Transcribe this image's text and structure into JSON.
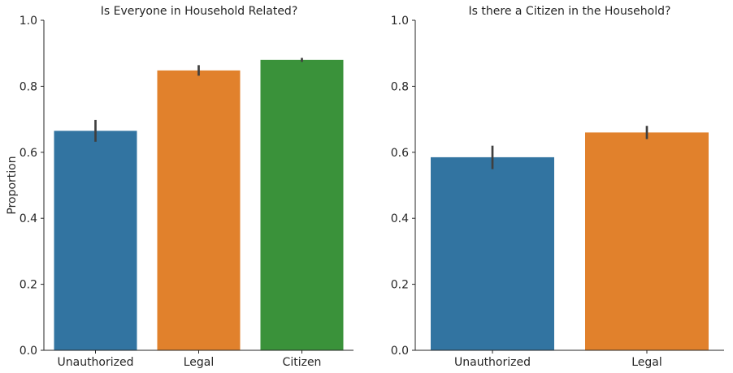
{
  "chart_data": [
    {
      "type": "bar",
      "title": "Is Everyone in Household Related?",
      "ylabel": "Proportion",
      "xlabel": "",
      "ylim": [
        0,
        1.0
      ],
      "yticks": [
        "0.0",
        "0.2",
        "0.4",
        "0.6",
        "0.8",
        "1.0"
      ],
      "categories": [
        "Unauthorized",
        "Legal",
        "Citizen"
      ],
      "values": [
        0.665,
        0.848,
        0.88
      ],
      "error_low": [
        0.632,
        0.832,
        0.874
      ],
      "error_high": [
        0.698,
        0.864,
        0.886
      ],
      "colors": [
        "#3274a1",
        "#e1812c",
        "#3a923a"
      ],
      "grid": false
    },
    {
      "type": "bar",
      "title": "Is there a Citizen in the Household?",
      "ylabel": "",
      "xlabel": "",
      "ylim": [
        0,
        1.0
      ],
      "yticks": [
        "0.0",
        "0.2",
        "0.4",
        "0.6",
        "0.8",
        "1.0"
      ],
      "categories": [
        "Unauthorized",
        "Legal"
      ],
      "values": [
        0.585,
        0.66
      ],
      "error_low": [
        0.549,
        0.64
      ],
      "error_high": [
        0.62,
        0.68
      ],
      "colors": [
        "#3274a1",
        "#e1812c"
      ],
      "grid": false
    }
  ]
}
